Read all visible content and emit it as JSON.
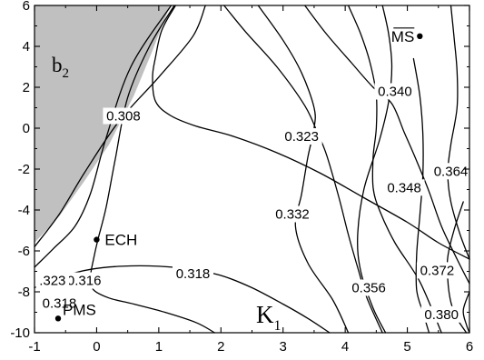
{
  "chart_data": {
    "type": "contour",
    "title": "",
    "xlabel": "K1",
    "ylabel": "",
    "xlim": [
      -1,
      6
    ],
    "ylim": [
      -10,
      6
    ],
    "xticks": [
      "-1",
      "0",
      "1",
      "2",
      "3",
      "4",
      "5",
      "6"
    ],
    "yticks": [
      "-10",
      "-8",
      "-6",
      "-4",
      "-2",
      "0",
      "2",
      "4",
      "6"
    ],
    "grid": false,
    "colors": {
      "background": "#ffffff",
      "shaded_region": "#c0c0c0",
      "line": "#000000"
    },
    "shaded_region": {
      "label_main": "b",
      "label_sub": "2",
      "boundary": [
        [
          -1,
          -5.6
        ],
        [
          -0.6,
          -4.3
        ],
        [
          -0.2,
          -2.6
        ],
        [
          0.2,
          -0.8
        ],
        [
          0.6,
          1.6
        ],
        [
          0.9,
          3.8
        ],
        [
          1.18,
          6
        ]
      ]
    },
    "axis_symbol": {
      "main": "K",
      "sub": "1"
    },
    "points": [
      {
        "name": "ECH",
        "x": 0.0,
        "y": -5.45
      },
      {
        "name": "PMS",
        "x": -0.62,
        "y": -9.3
      },
      {
        "name": "MS",
        "x": 5.2,
        "y": 4.5,
        "overline": true
      }
    ],
    "contours": [
      {
        "level": "0.308",
        "points": [
          [
            1.27,
            6
          ],
          [
            1.05,
            4.8
          ],
          [
            0.95,
            3.5
          ],
          [
            0.9,
            2.5
          ],
          [
            0.95,
            1.3
          ],
          [
            1.2,
            0.6
          ],
          [
            1.6,
            0.1
          ],
          [
            2.2,
            -0.4
          ],
          [
            2.9,
            -1.2
          ],
          [
            3.6,
            -2.2
          ],
          [
            4.3,
            -3.4
          ],
          [
            5.0,
            -4.6
          ],
          [
            5.5,
            -5.6
          ],
          [
            6.0,
            -6.4
          ]
        ]
      },
      {
        "level": "0.316",
        "points": [
          [
            1.25,
            6
          ],
          [
            0.85,
            4.0
          ],
          [
            0.5,
            1.5
          ],
          [
            0.3,
            -1.5
          ],
          [
            0.15,
            -3.9
          ],
          [
            0.02,
            -5.45
          ],
          [
            -0.05,
            -6.4
          ],
          [
            -0.1,
            -7.3
          ],
          [
            -0.05,
            -7.9
          ],
          [
            0.2,
            -8.3
          ],
          [
            0.6,
            -8.6
          ],
          [
            1.1,
            -9.0
          ],
          [
            1.6,
            -9.5
          ],
          [
            1.9,
            -10
          ]
        ]
      },
      {
        "level": "0.318",
        "points": [
          [
            1.2,
            6
          ],
          [
            0.55,
            3.0
          ],
          [
            0.15,
            -0.5
          ],
          [
            -0.1,
            -3.2
          ],
          [
            -0.35,
            -4.8
          ],
          [
            -0.7,
            -5.9
          ],
          [
            -1.0,
            -6.8
          ]
        ]
      },
      {
        "level": "0.318",
        "points": [
          [
            -1.0,
            -7.8
          ],
          [
            -0.55,
            -7.25
          ],
          [
            -0.1,
            -6.9
          ],
          [
            0.4,
            -6.75
          ],
          [
            1.0,
            -6.75
          ],
          [
            1.5,
            -6.9
          ],
          [
            2.0,
            -7.2
          ],
          [
            2.5,
            -7.8
          ],
          [
            3.0,
            -8.6
          ],
          [
            3.4,
            -9.3
          ],
          [
            3.75,
            -10
          ]
        ]
      },
      {
        "level": "0.323",
        "points": [
          [
            1.75,
            6
          ],
          [
            1.55,
            4.5
          ],
          [
            1.0,
            2.5
          ],
          [
            0.35,
            0.3
          ],
          [
            -0.2,
            -2.2
          ],
          [
            -0.6,
            -4.2
          ],
          [
            -1.0,
            -5.8
          ]
        ]
      },
      {
        "level": "0.323",
        "points": [
          [
            2.05,
            6
          ],
          [
            2.4,
            4.7
          ],
          [
            2.9,
            3.0
          ],
          [
            3.35,
            1.1
          ],
          [
            3.55,
            -0.2
          ],
          [
            3.7,
            -1.3
          ],
          [
            3.9,
            -3.4
          ],
          [
            4.05,
            -5.2
          ],
          [
            4.2,
            -6.8
          ],
          [
            4.35,
            -8.3
          ],
          [
            4.6,
            -10
          ]
        ]
      },
      {
        "level": "0.332",
        "points": [
          [
            2.6,
            6
          ],
          [
            3.0,
            4.3
          ],
          [
            3.3,
            2.7
          ],
          [
            3.5,
            1.0
          ],
          [
            3.5,
            0.0
          ],
          [
            3.4,
            -1.4
          ],
          [
            3.3,
            -3.2
          ],
          [
            3.2,
            -4.8
          ],
          [
            3.4,
            -6.6
          ],
          [
            3.8,
            -8.4
          ],
          [
            4.05,
            -10
          ]
        ]
      },
      {
        "level": "0.340",
        "points": [
          [
            3.35,
            6
          ],
          [
            3.7,
            4.6
          ],
          [
            4.1,
            3.2
          ],
          [
            4.45,
            2.0
          ],
          [
            4.75,
            1.2
          ],
          [
            4.95,
            -0.2
          ],
          [
            5.15,
            -1.6
          ],
          [
            5.35,
            -3.1
          ],
          [
            5.55,
            -4.8
          ],
          [
            5.8,
            -6.4
          ],
          [
            6.0,
            -7.6
          ]
        ]
      },
      {
        "level": "0.348",
        "points": [
          [
            4.05,
            6
          ],
          [
            4.25,
            4.6
          ],
          [
            4.4,
            3.2
          ],
          [
            4.5,
            1.6
          ],
          [
            4.5,
            0.0
          ],
          [
            4.45,
            -1.4
          ],
          [
            4.45,
            -2.9
          ],
          [
            4.55,
            -4.0
          ],
          [
            4.8,
            -5.6
          ],
          [
            5.2,
            -7.5
          ],
          [
            5.55,
            -10
          ]
        ]
      },
      {
        "level": "0.356",
        "points": [
          [
            4.6,
            6
          ],
          [
            4.7,
            4.6
          ],
          [
            4.75,
            3.0
          ],
          [
            4.7,
            1.3
          ],
          [
            4.55,
            -0.6
          ],
          [
            4.3,
            -3.0
          ],
          [
            4.2,
            -5.3
          ],
          [
            4.25,
            -7.0
          ],
          [
            4.45,
            -8.8
          ],
          [
            4.65,
            -10
          ]
        ]
      },
      {
        "level": "0.364",
        "points": [
          [
            5.7,
            6
          ],
          [
            5.75,
            4.5
          ],
          [
            5.8,
            2.8
          ],
          [
            5.8,
            1.0
          ],
          [
            5.7,
            -0.8
          ],
          [
            5.65,
            -2.2
          ],
          [
            5.7,
            -3.6
          ],
          [
            5.85,
            -5.2
          ],
          [
            6.0,
            -6.4
          ]
        ]
      },
      {
        "level": "0.372",
        "points": [
          [
            5.1,
            3.4
          ],
          [
            5.2,
            1.6
          ],
          [
            5.25,
            -0.3
          ],
          [
            5.25,
            -2.3
          ],
          [
            5.2,
            -4.3
          ],
          [
            5.15,
            -6.2
          ],
          [
            5.15,
            -7.9
          ],
          [
            5.25,
            -9.0
          ],
          [
            5.35,
            -10
          ]
        ]
      },
      {
        "level": "0.380",
        "points": [
          [
            5.9,
            -3.6
          ],
          [
            5.75,
            -5.0
          ],
          [
            5.65,
            -6.3
          ],
          [
            5.65,
            -7.4
          ],
          [
            5.7,
            -8.5
          ],
          [
            5.8,
            -9.3
          ],
          [
            5.95,
            -10
          ]
        ]
      },
      {
        "level": "",
        "points": [
          [
            6.0,
            -8.0
          ],
          [
            5.9,
            -8.9
          ],
          [
            5.95,
            -9.6
          ],
          [
            6.0,
            -10
          ]
        ]
      }
    ],
    "contour_labels": [
      {
        "text": "0.308",
        "x": 0.43,
        "y": 0.6
      },
      {
        "text": "0.323",
        "x": 3.3,
        "y": -0.4
      },
      {
        "text": "0.340",
        "x": 4.8,
        "y": 1.8
      },
      {
        "text": "0.364",
        "x": 5.7,
        "y": -2.1
      },
      {
        "text": "0.348",
        "x": 4.95,
        "y": -2.9
      },
      {
        "text": "0.332",
        "x": 3.15,
        "y": -4.2
      },
      {
        "text": "0.316",
        "x": -0.2,
        "y": -7.45
      },
      {
        "text": "0.318",
        "x": 1.55,
        "y": -7.1
      },
      {
        "text": ".323",
        "x": -0.71,
        "y": -7.45
      },
      {
        "text": "0.318",
        "x": -0.6,
        "y": -8.55
      },
      {
        "text": "0.356",
        "x": 4.38,
        "y": -7.8
      },
      {
        "text": "0.372",
        "x": 5.48,
        "y": -6.95
      },
      {
        "text": "0.380",
        "x": 5.55,
        "y": -9.1
      }
    ]
  }
}
